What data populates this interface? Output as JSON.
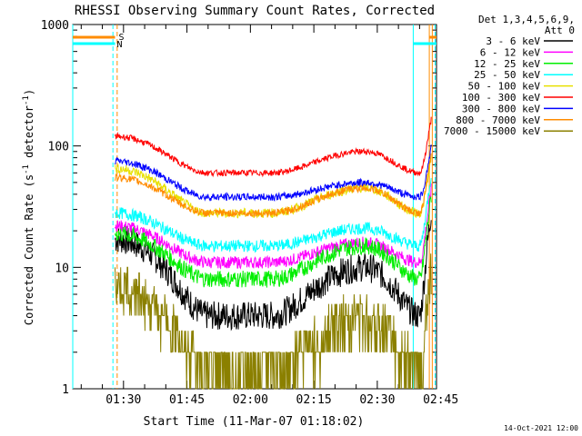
{
  "chart_data": {
    "type": "line",
    "title": "RHESSI Observing Summary Count Rates, Corrected",
    "xlabel": "Start Time (11-Mar-07 01:18:02)",
    "ylabel_main": "Corrected Count Rate (s",
    "ylabel_sup1": "-1",
    "ylabel_mid": " detector",
    "ylabel_sup2": "-1",
    "ylabel_end": ")",
    "ylabel_full": "Corrected Count Rate (s-1 detector-1)",
    "y_scale": "log",
    "ylim": [
      1,
      1000
    ],
    "xlim_min": [
      78,
      164
    ],
    "x_ticks": [
      {
        "min": 90,
        "label": "01:30"
      },
      {
        "min": 105,
        "label": "01:45"
      },
      {
        "min": 120,
        "label": "02:00"
      },
      {
        "min": 135,
        "label": "02:15"
      },
      {
        "min": 150,
        "label": "02:30"
      },
      {
        "min": 165,
        "label": "02:45"
      }
    ],
    "y_tick_labels": [
      {
        "value": 1,
        "label": "1"
      },
      {
        "value": 10,
        "label": "10"
      },
      {
        "value": 100,
        "label": "100"
      },
      {
        "value": 1000,
        "label": "1000"
      }
    ],
    "legend_position": "right",
    "legend_header": [
      "Det 1,3,4,5,6,9,",
      "Att 0"
    ],
    "legend": [
      {
        "label": "3 - 6 keV",
        "color": "#000000"
      },
      {
        "label": "6 - 12 keV",
        "color": "#ff00ff"
      },
      {
        "label": "12 - 25 keV",
        "color": "#00ee00"
      },
      {
        "label": "25 - 50 keV",
        "color": "#00ffff"
      },
      {
        "label": "50 - 100 keV",
        "color": "#e8e000"
      },
      {
        "label": "100 - 300 keV",
        "color": "#ff0000"
      },
      {
        "label": "300 - 800 keV",
        "color": "#0000ff"
      },
      {
        "label": "800 - 7000 keV",
        "color": "#ff8c00"
      },
      {
        "label": "7000 - 15000 keV",
        "color": "#8b8000"
      }
    ],
    "flags": [
      {
        "label": "S",
        "color": "#ff8c00"
      },
      {
        "label": "N",
        "color": "#00ffff"
      }
    ],
    "series_envelope": {
      "data_start_min": 88,
      "data_end_min": 163,
      "shape": "dip then hump then flare spike",
      "approx_levels_at_start": {
        "100-300 keV": 120,
        "300-800 keV": 75,
        "800-7000 keV": 55,
        "50-100 keV": 65,
        "25-50 keV": 28,
        "6-12 keV": 22,
        "12-25 keV": 19,
        "3-6 keV": 17,
        "7000-15000 keV": 7
      },
      "approx_levels_at_dip": {
        "100-300 keV": 60,
        "300-800 keV": 38,
        "800-7000 keV": 28,
        "50-100 keV": 28,
        "25-50 keV": 15,
        "6-12 keV": 11,
        "12-25 keV": 8,
        "3-6 keV": 4,
        "7000-15000 keV": 1.5
      },
      "approx_levels_at_hump": {
        "100-300 keV": 90,
        "300-800 keV": 50,
        "800-7000 keV": 45,
        "50-100 keV": 45,
        "25-50 keV": 21,
        "6-12 keV": 16,
        "12-25 keV": 15,
        "3-6 keV": 10,
        "7000-15000 keV": 4
      },
      "approx_levels_at_flare": {
        "100-300 keV": 170,
        "300-800 keV": 100,
        "800-7000 keV": 90,
        "50-100 keV": 80,
        "25-50 keV": 60,
        "6-12 keV": 45,
        "12-25 keV": 40,
        "3-6 keV": 30,
        "7000-15000 keV": 10
      }
    },
    "grid": false
  },
  "footer": {
    "timestamp": "14-Oct-2021 12:00"
  }
}
